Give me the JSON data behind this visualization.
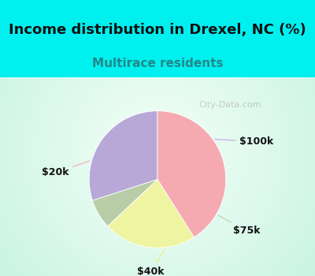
{
  "title": "Income distribution in Drexel, NC (%)",
  "subtitle": "Multirace residents",
  "title_fontsize": 13,
  "subtitle_fontsize": 11,
  "labels": [
    "$100k",
    "$75k",
    "$40k",
    "$20k"
  ],
  "sizes": [
    30,
    7,
    22,
    41
  ],
  "colors": [
    "#b8a8d8",
    "#b8cca8",
    "#eef4a0",
    "#f4aab0"
  ],
  "startangle": 90,
  "bg_color": "#00f0f0",
  "watermark": "City-Data.com",
  "label_fontsize": 9
}
